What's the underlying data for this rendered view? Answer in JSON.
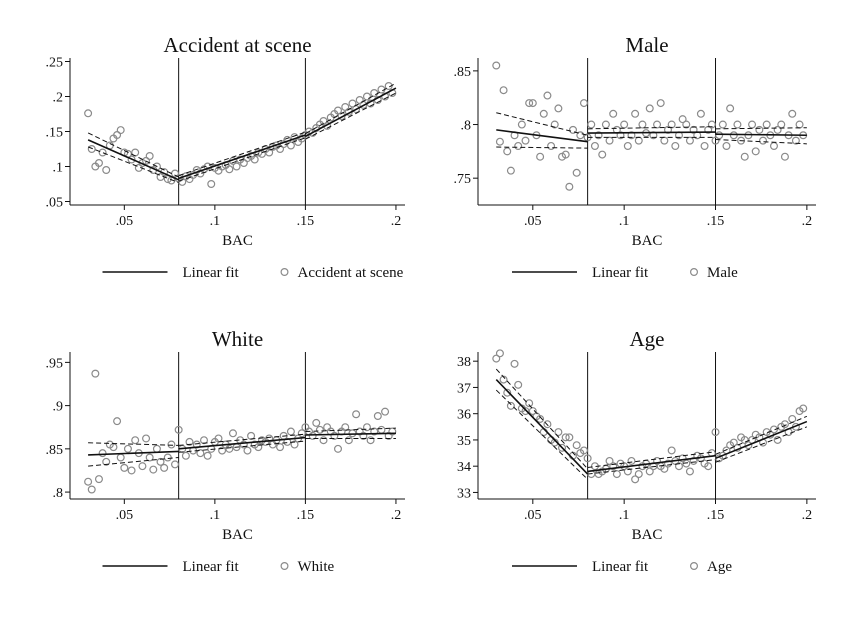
{
  "chart_data": [
    {
      "type": "scatter",
      "title": "Accident at scene",
      "xlabel": "BAC",
      "ylabel": "",
      "xlim": [
        0.02,
        0.205
      ],
      "ylim": [
        0.045,
        0.255
      ],
      "xticks": [
        0.05,
        0.1,
        0.15,
        0.2
      ],
      "xtick_labels": [
        ".05",
        ".1",
        ".15",
        ".2"
      ],
      "yticks": [
        0.05,
        0.1,
        0.15,
        0.2,
        0.25
      ],
      "ytick_labels": [
        ".05",
        ".1",
        ".15",
        ".2",
        ".25"
      ],
      "cutoffs": [
        0.08,
        0.15
      ],
      "legend": [
        "Linear fit",
        "Accident at scene"
      ],
      "legend_position": "bottom",
      "scatter_series": "Accident at scene",
      "scatter_x": [
        0.03,
        0.032,
        0.034,
        0.036,
        0.038,
        0.04,
        0.042,
        0.044,
        0.046,
        0.048,
        0.05,
        0.052,
        0.054,
        0.056,
        0.058,
        0.06,
        0.062,
        0.064,
        0.066,
        0.068,
        0.07,
        0.072,
        0.074,
        0.076,
        0.078,
        0.08,
        0.082,
        0.084,
        0.086,
        0.088,
        0.09,
        0.092,
        0.094,
        0.096,
        0.098,
        0.1,
        0.102,
        0.104,
        0.106,
        0.108,
        0.11,
        0.112,
        0.114,
        0.116,
        0.118,
        0.12,
        0.122,
        0.124,
        0.126,
        0.128,
        0.13,
        0.132,
        0.134,
        0.136,
        0.138,
        0.14,
        0.142,
        0.144,
        0.146,
        0.148,
        0.15,
        0.152,
        0.154,
        0.156,
        0.158,
        0.16,
        0.162,
        0.164,
        0.166,
        0.168,
        0.17,
        0.172,
        0.174,
        0.176,
        0.178,
        0.18,
        0.182,
        0.184,
        0.186,
        0.188,
        0.19,
        0.192,
        0.194,
        0.196,
        0.198
      ],
      "scatter_y": [
        0.176,
        0.125,
        0.1,
        0.105,
        0.12,
        0.095,
        0.13,
        0.14,
        0.145,
        0.152,
        0.12,
        0.118,
        0.11,
        0.12,
        0.098,
        0.105,
        0.108,
        0.115,
        0.095,
        0.1,
        0.085,
        0.092,
        0.082,
        0.08,
        0.09,
        0.083,
        0.078,
        0.086,
        0.082,
        0.088,
        0.095,
        0.09,
        0.096,
        0.1,
        0.075,
        0.098,
        0.094,
        0.1,
        0.102,
        0.096,
        0.108,
        0.1,
        0.11,
        0.105,
        0.112,
        0.115,
        0.11,
        0.12,
        0.118,
        0.125,
        0.12,
        0.128,
        0.13,
        0.125,
        0.132,
        0.138,
        0.13,
        0.142,
        0.135,
        0.14,
        0.145,
        0.15,
        0.148,
        0.155,
        0.16,
        0.165,
        0.158,
        0.17,
        0.175,
        0.18,
        0.172,
        0.185,
        0.178,
        0.19,
        0.182,
        0.195,
        0.188,
        0.2,
        0.19,
        0.205,
        0.195,
        0.21,
        0.2,
        0.215,
        0.205
      ],
      "fits": [
        {
          "x0": 0.03,
          "x1": 0.08,
          "y0": 0.138,
          "y1": 0.081,
          "lo0": 0.128,
          "lo1": 0.077,
          "hi0": 0.148,
          "hi1": 0.085
        },
        {
          "x0": 0.08,
          "x1": 0.15,
          "y0": 0.083,
          "y1": 0.145,
          "lo0": 0.079,
          "lo1": 0.141,
          "hi0": 0.087,
          "hi1": 0.149
        },
        {
          "x0": 0.15,
          "x1": 0.2,
          "y0": 0.143,
          "y1": 0.212,
          "lo0": 0.139,
          "lo1": 0.205,
          "hi0": 0.147,
          "hi1": 0.219
        }
      ]
    },
    {
      "type": "scatter",
      "title": "Male",
      "xlabel": "BAC",
      "ylabel": "",
      "xlim": [
        0.02,
        0.205
      ],
      "ylim": [
        0.725,
        0.862
      ],
      "xticks": [
        0.05,
        0.1,
        0.15,
        0.2
      ],
      "xtick_labels": [
        ".05",
        ".1",
        ".15",
        ".2"
      ],
      "yticks": [
        0.75,
        0.8,
        0.85
      ],
      "ytick_labels": [
        ".75",
        ".8",
        ".85"
      ],
      "cutoffs": [
        0.08,
        0.15
      ],
      "legend": [
        "Linear fit",
        "Male"
      ],
      "legend_position": "bottom",
      "scatter_series": "Male",
      "scatter_x": [
        0.03,
        0.032,
        0.034,
        0.036,
        0.038,
        0.04,
        0.042,
        0.044,
        0.046,
        0.048,
        0.05,
        0.052,
        0.054,
        0.056,
        0.058,
        0.06,
        0.062,
        0.064,
        0.066,
        0.068,
        0.07,
        0.072,
        0.074,
        0.076,
        0.078,
        0.08,
        0.082,
        0.084,
        0.086,
        0.088,
        0.09,
        0.092,
        0.094,
        0.096,
        0.098,
        0.1,
        0.102,
        0.104,
        0.106,
        0.108,
        0.11,
        0.112,
        0.114,
        0.116,
        0.118,
        0.12,
        0.122,
        0.124,
        0.126,
        0.128,
        0.13,
        0.132,
        0.134,
        0.136,
        0.138,
        0.14,
        0.142,
        0.144,
        0.146,
        0.148,
        0.15,
        0.152,
        0.154,
        0.156,
        0.158,
        0.16,
        0.162,
        0.164,
        0.166,
        0.168,
        0.17,
        0.172,
        0.174,
        0.176,
        0.178,
        0.18,
        0.182,
        0.184,
        0.186,
        0.188,
        0.19,
        0.192,
        0.194,
        0.196,
        0.198
      ],
      "scatter_y": [
        0.855,
        0.784,
        0.832,
        0.775,
        0.757,
        0.79,
        0.78,
        0.8,
        0.785,
        0.82,
        0.82,
        0.79,
        0.77,
        0.81,
        0.827,
        0.78,
        0.8,
        0.815,
        0.77,
        0.772,
        0.742,
        0.795,
        0.755,
        0.79,
        0.82,
        0.788,
        0.8,
        0.78,
        0.79,
        0.772,
        0.8,
        0.785,
        0.81,
        0.795,
        0.79,
        0.8,
        0.78,
        0.79,
        0.81,
        0.785,
        0.8,
        0.792,
        0.815,
        0.79,
        0.8,
        0.82,
        0.785,
        0.795,
        0.8,
        0.78,
        0.79,
        0.805,
        0.8,
        0.785,
        0.795,
        0.79,
        0.81,
        0.78,
        0.795,
        0.8,
        0.785,
        0.79,
        0.8,
        0.78,
        0.815,
        0.79,
        0.8,
        0.785,
        0.77,
        0.79,
        0.8,
        0.775,
        0.795,
        0.785,
        0.8,
        0.79,
        0.78,
        0.795,
        0.8,
        0.77,
        0.79,
        0.81,
        0.785,
        0.8,
        0.79
      ],
      "fits": [
        {
          "x0": 0.03,
          "x1": 0.08,
          "y0": 0.795,
          "y1": 0.784,
          "lo0": 0.779,
          "lo1": 0.778,
          "hi0": 0.811,
          "hi1": 0.79
        },
        {
          "x0": 0.08,
          "x1": 0.15,
          "y0": 0.792,
          "y1": 0.793,
          "lo0": 0.788,
          "lo1": 0.788,
          "hi0": 0.796,
          "hi1": 0.798
        },
        {
          "x0": 0.15,
          "x1": 0.2,
          "y0": 0.791,
          "y1": 0.79,
          "lo0": 0.786,
          "lo1": 0.782,
          "hi0": 0.796,
          "hi1": 0.797
        }
      ]
    },
    {
      "type": "scatter",
      "title": "White",
      "xlabel": "BAC",
      "ylabel": "",
      "xlim": [
        0.02,
        0.205
      ],
      "ylim": [
        0.792,
        0.962
      ],
      "xticks": [
        0.05,
        0.1,
        0.15,
        0.2
      ],
      "xtick_labels": [
        ".05",
        ".1",
        ".15",
        ".2"
      ],
      "yticks": [
        0.8,
        0.85,
        0.9,
        0.95
      ],
      "ytick_labels": [
        ".8",
        ".85",
        ".9",
        ".95"
      ],
      "cutoffs": [
        0.08,
        0.15
      ],
      "legend": [
        "Linear fit",
        "White"
      ],
      "legend_position": "bottom",
      "scatter_series": "White",
      "scatter_x": [
        0.03,
        0.032,
        0.034,
        0.036,
        0.038,
        0.04,
        0.042,
        0.044,
        0.046,
        0.048,
        0.05,
        0.052,
        0.054,
        0.056,
        0.058,
        0.06,
        0.062,
        0.064,
        0.066,
        0.068,
        0.07,
        0.072,
        0.074,
        0.076,
        0.078,
        0.08,
        0.082,
        0.084,
        0.086,
        0.088,
        0.09,
        0.092,
        0.094,
        0.096,
        0.098,
        0.1,
        0.102,
        0.104,
        0.106,
        0.108,
        0.11,
        0.112,
        0.114,
        0.116,
        0.118,
        0.12,
        0.122,
        0.124,
        0.126,
        0.128,
        0.13,
        0.132,
        0.134,
        0.136,
        0.138,
        0.14,
        0.142,
        0.144,
        0.146,
        0.148,
        0.15,
        0.152,
        0.154,
        0.156,
        0.158,
        0.16,
        0.162,
        0.164,
        0.166,
        0.168,
        0.17,
        0.172,
        0.174,
        0.176,
        0.178,
        0.18,
        0.182,
        0.184,
        0.186,
        0.188,
        0.19,
        0.192,
        0.194,
        0.196,
        0.198
      ],
      "scatter_y": [
        0.812,
        0.803,
        0.937,
        0.815,
        0.845,
        0.835,
        0.855,
        0.852,
        0.882,
        0.84,
        0.828,
        0.85,
        0.825,
        0.86,
        0.845,
        0.83,
        0.862,
        0.84,
        0.826,
        0.85,
        0.835,
        0.828,
        0.84,
        0.855,
        0.832,
        0.872,
        0.85,
        0.842,
        0.858,
        0.848,
        0.855,
        0.845,
        0.86,
        0.842,
        0.85,
        0.858,
        0.862,
        0.848,
        0.855,
        0.85,
        0.868,
        0.852,
        0.86,
        0.855,
        0.848,
        0.865,
        0.855,
        0.852,
        0.86,
        0.858,
        0.862,
        0.855,
        0.86,
        0.852,
        0.865,
        0.858,
        0.87,
        0.855,
        0.862,
        0.868,
        0.875,
        0.87,
        0.865,
        0.88,
        0.872,
        0.86,
        0.875,
        0.87,
        0.865,
        0.85,
        0.87,
        0.875,
        0.86,
        0.868,
        0.89,
        0.87,
        0.865,
        0.875,
        0.86,
        0.87,
        0.888,
        0.872,
        0.893,
        0.865,
        0.87
      ],
      "fits": [
        {
          "x0": 0.03,
          "x1": 0.08,
          "y0": 0.843,
          "y1": 0.847,
          "lo0": 0.83,
          "lo1": 0.84,
          "hi0": 0.857,
          "hi1": 0.854
        },
        {
          "x0": 0.08,
          "x1": 0.15,
          "y0": 0.85,
          "y1": 0.863,
          "lo0": 0.846,
          "lo1": 0.859,
          "hi0": 0.854,
          "hi1": 0.867
        },
        {
          "x0": 0.15,
          "x1": 0.2,
          "y0": 0.866,
          "y1": 0.868,
          "lo0": 0.862,
          "lo1": 0.862,
          "hi0": 0.87,
          "hi1": 0.874
        }
      ]
    },
    {
      "type": "scatter",
      "title": "Age",
      "xlabel": "BAC",
      "ylabel": "",
      "xlim": [
        0.02,
        0.205
      ],
      "ylim": [
        32.75,
        38.35
      ],
      "xticks": [
        0.05,
        0.1,
        0.15,
        0.2
      ],
      "xtick_labels": [
        ".05",
        ".1",
        ".15",
        ".2"
      ],
      "yticks": [
        33,
        34,
        35,
        36,
        37,
        38
      ],
      "ytick_labels": [
        "33",
        "34",
        "35",
        "36",
        "37",
        "38"
      ],
      "cutoffs": [
        0.08,
        0.15
      ],
      "legend": [
        "Linear fit",
        "Age"
      ],
      "legend_position": "bottom",
      "scatter_series": "Age",
      "scatter_x": [
        0.03,
        0.032,
        0.034,
        0.036,
        0.038,
        0.04,
        0.042,
        0.044,
        0.046,
        0.048,
        0.05,
        0.052,
        0.054,
        0.056,
        0.058,
        0.06,
        0.062,
        0.064,
        0.066,
        0.068,
        0.07,
        0.072,
        0.074,
        0.076,
        0.078,
        0.08,
        0.082,
        0.084,
        0.086,
        0.088,
        0.09,
        0.092,
        0.094,
        0.096,
        0.098,
        0.1,
        0.102,
        0.104,
        0.106,
        0.108,
        0.11,
        0.112,
        0.114,
        0.116,
        0.118,
        0.12,
        0.122,
        0.124,
        0.126,
        0.128,
        0.13,
        0.132,
        0.134,
        0.136,
        0.138,
        0.14,
        0.142,
        0.144,
        0.146,
        0.148,
        0.15,
        0.152,
        0.154,
        0.156,
        0.158,
        0.16,
        0.162,
        0.164,
        0.166,
        0.168,
        0.17,
        0.172,
        0.174,
        0.176,
        0.178,
        0.18,
        0.182,
        0.184,
        0.186,
        0.188,
        0.19,
        0.192,
        0.194,
        0.196,
        0.198
      ],
      "scatter_y": [
        38.1,
        38.3,
        37.3,
        36.8,
        36.3,
        37.9,
        37.1,
        36.2,
        36.1,
        36.4,
        36.1,
        35.9,
        35.8,
        35.3,
        35.6,
        35.0,
        34.9,
        35.3,
        34.7,
        35.1,
        35.1,
        34.4,
        34.8,
        34.5,
        34.6,
        34.3,
        33.7,
        34.0,
        33.7,
        33.8,
        33.9,
        34.2,
        34.0,
        33.7,
        34.1,
        34.0,
        33.8,
        34.2,
        33.5,
        33.7,
        34.0,
        34.1,
        33.8,
        34.0,
        34.2,
        34.0,
        33.9,
        34.1,
        34.6,
        34.2,
        34.0,
        34.3,
        34.1,
        33.8,
        34.2,
        34.4,
        34.3,
        34.1,
        34.0,
        34.5,
        35.3,
        34.3,
        34.4,
        34.6,
        34.8,
        34.9,
        34.7,
        35.1,
        35.0,
        34.8,
        35.0,
        35.2,
        35.1,
        34.9,
        35.3,
        35.2,
        35.4,
        35.0,
        35.5,
        35.6,
        35.3,
        35.8,
        35.5,
        36.1,
        36.2
      ],
      "fits": [
        {
          "x0": 0.03,
          "x1": 0.08,
          "y0": 37.3,
          "y1": 33.7,
          "lo0": 36.9,
          "lo1": 33.5,
          "hi0": 37.7,
          "hi1": 33.9
        },
        {
          "x0": 0.08,
          "x1": 0.15,
          "y0": 33.8,
          "y1": 34.4,
          "lo0": 33.7,
          "lo1": 34.25,
          "hi0": 33.95,
          "hi1": 34.55
        },
        {
          "x0": 0.15,
          "x1": 0.2,
          "y0": 34.3,
          "y1": 35.7,
          "lo0": 34.15,
          "lo1": 35.5,
          "hi0": 34.45,
          "hi1": 35.9
        }
      ]
    }
  ]
}
